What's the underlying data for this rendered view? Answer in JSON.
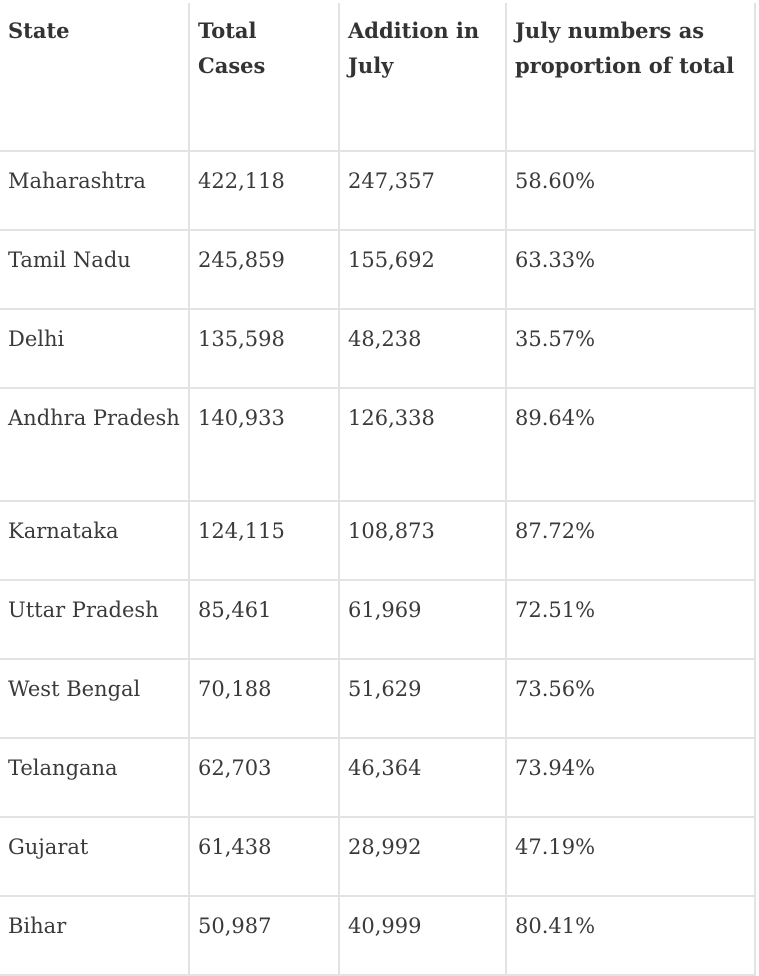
{
  "table": {
    "headers": [
      "State",
      "Total Cases",
      "Addition in July",
      "July numbers as proportion of total"
    ],
    "rows": [
      [
        "Maharashtra",
        "422,118",
        "247,357",
        "58.60%"
      ],
      [
        "Tamil Nadu",
        "245,859",
        "155,692",
        "63.33%"
      ],
      [
        "Delhi",
        "135,598",
        "48,238",
        "35.57%"
      ],
      [
        "Andhra Pradesh",
        "140,933",
        "126,338",
        "89.64%"
      ],
      [
        "Karnataka",
        "124,115",
        "108,873",
        "87.72%"
      ],
      [
        "Uttar Pradesh",
        "85,461",
        "61,969",
        "72.51%"
      ],
      [
        "West Bengal",
        "70,188",
        "51,629",
        "73.56%"
      ],
      [
        "Telangana",
        "62,703",
        "46,364",
        "73.94%"
      ],
      [
        "Gujarat",
        "61,438",
        "28,992",
        "47.19%"
      ],
      [
        "Bihar",
        "50,987",
        "40,999",
        "80.41%"
      ]
    ]
  }
}
